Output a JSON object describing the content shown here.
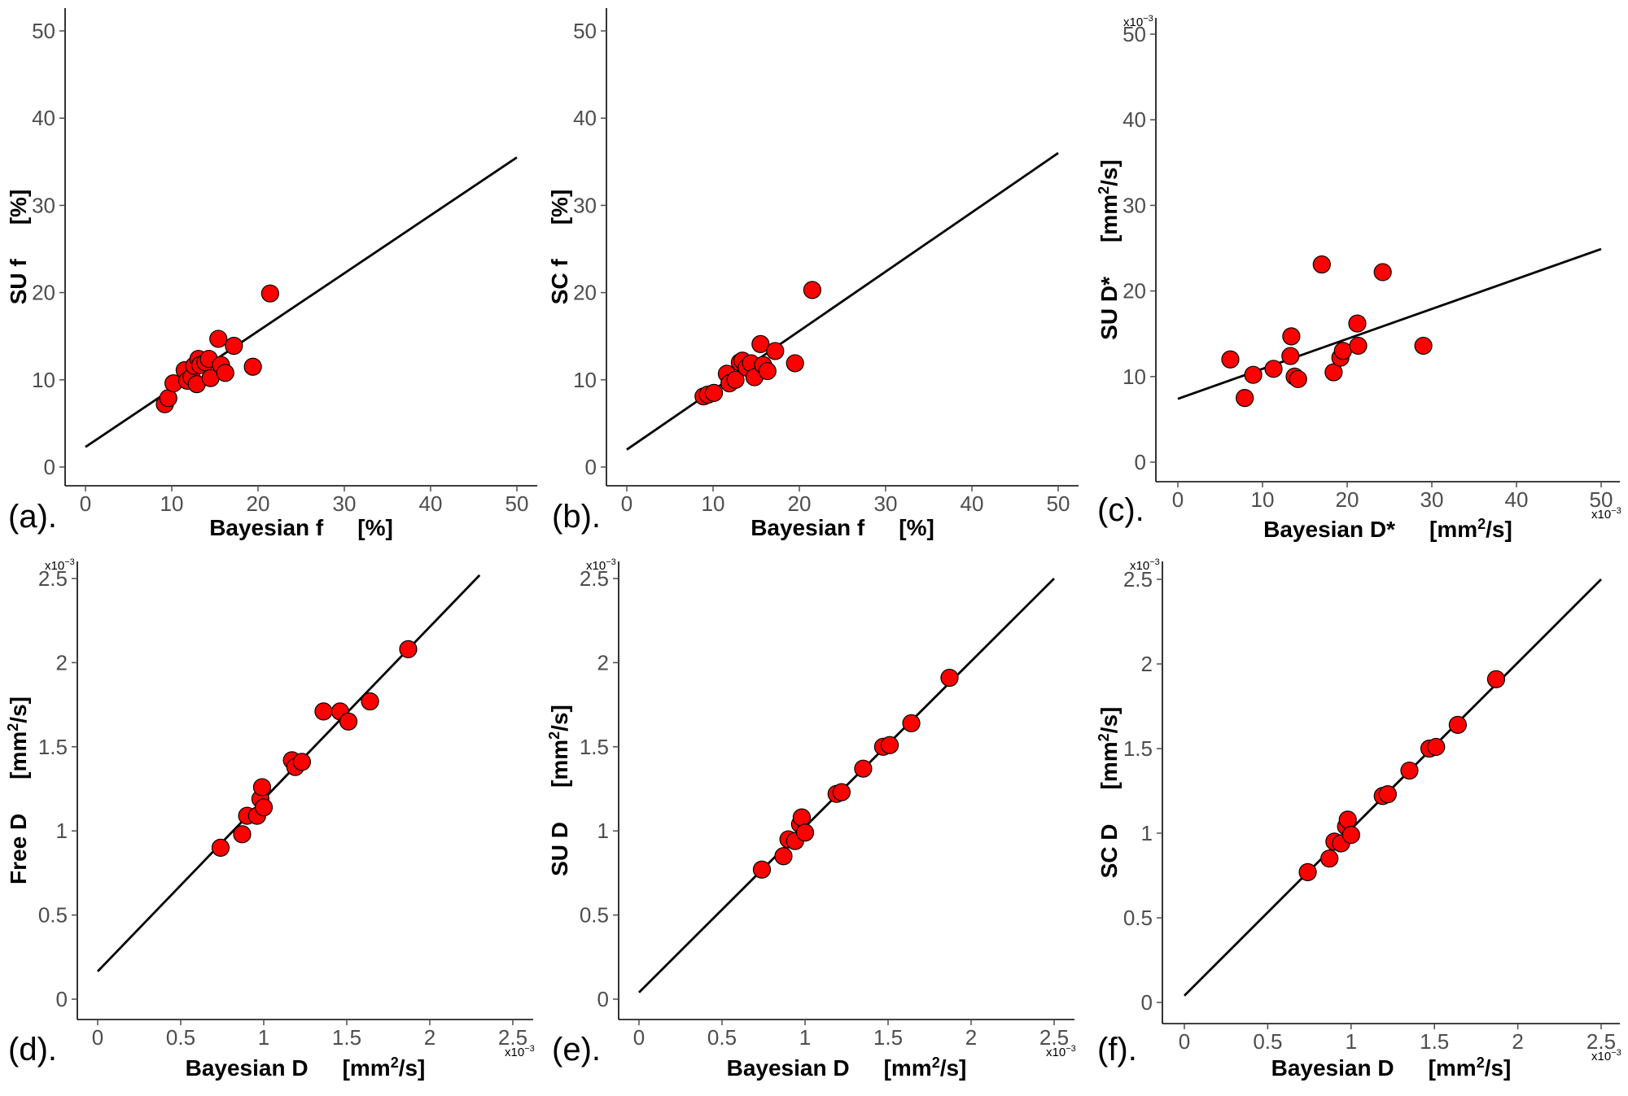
{
  "chart_data": [
    {
      "type": "scatter",
      "panel_label": "(a).",
      "xlabel": "Bayesian f",
      "ylabel": "SU f",
      "x_unit": "[%]",
      "y_unit": "[%]",
      "xlim": [
        0,
        50
      ],
      "ylim": [
        0,
        50
      ],
      "xticks": [
        0,
        10,
        20,
        30,
        40,
        50
      ],
      "yticks": [
        0,
        10,
        20,
        30,
        40,
        50
      ],
      "xtick_labels": [
        "0",
        "10",
        "20",
        "30",
        "40",
        "50"
      ],
      "ytick_labels": [
        "0",
        "10",
        "20",
        "30",
        "40",
        "50"
      ],
      "x_multiplier": "",
      "y_multiplier": "",
      "fit_line": {
        "x": [
          0,
          50
        ],
        "y": [
          2.3,
          35.5
        ]
      },
      "points": [
        [
          9.2,
          7.2
        ],
        [
          9.6,
          7.9
        ],
        [
          10.2,
          9.6
        ],
        [
          11.5,
          11.1
        ],
        [
          11.8,
          9.9
        ],
        [
          12.3,
          10.3
        ],
        [
          12.6,
          11.6
        ],
        [
          12.9,
          9.5
        ],
        [
          13.1,
          12.4
        ],
        [
          13.3,
          11.7
        ],
        [
          13.9,
          12.0
        ],
        [
          14.3,
          12.4
        ],
        [
          14.5,
          10.2
        ],
        [
          15.4,
          14.7
        ],
        [
          15.7,
          11.7
        ],
        [
          16.2,
          10.8
        ],
        [
          17.2,
          13.9
        ],
        [
          19.4,
          11.5
        ],
        [
          21.4,
          19.9
        ]
      ]
    },
    {
      "type": "scatter",
      "panel_label": "(b).",
      "xlabel": "Bayesian f",
      "ylabel": "SC f",
      "x_unit": "[%]",
      "y_unit": "[%]",
      "xlim": [
        0,
        50
      ],
      "ylim": [
        0,
        50
      ],
      "xticks": [
        0,
        10,
        20,
        30,
        40,
        50
      ],
      "yticks": [
        0,
        10,
        20,
        30,
        40,
        50
      ],
      "xtick_labels": [
        "0",
        "10",
        "20",
        "30",
        "40",
        "50"
      ],
      "ytick_labels": [
        "0",
        "10",
        "20",
        "30",
        "40",
        "50"
      ],
      "x_multiplier": "",
      "y_multiplier": "",
      "fit_line": {
        "x": [
          0,
          50
        ],
        "y": [
          2.0,
          36.0
        ]
      },
      "points": [
        [
          8.9,
          8.1
        ],
        [
          9.4,
          8.3
        ],
        [
          10.1,
          8.5
        ],
        [
          11.6,
          10.7
        ],
        [
          11.9,
          9.6
        ],
        [
          12.6,
          10.0
        ],
        [
          13.1,
          12.0
        ],
        [
          13.4,
          12.2
        ],
        [
          13.9,
          11.4
        ],
        [
          14.4,
          11.9
        ],
        [
          14.8,
          10.3
        ],
        [
          15.5,
          14.1
        ],
        [
          15.8,
          11.7
        ],
        [
          16.3,
          11.0
        ],
        [
          17.2,
          13.3
        ],
        [
          19.5,
          11.9
        ],
        [
          21.5,
          20.3
        ]
      ]
    },
    {
      "type": "scatter",
      "panel_label": "(c).",
      "xlabel": "Bayesian D*",
      "ylabel": "SU D*",
      "x_unit": "[mm2/s]",
      "y_unit": "[mm2/s]",
      "xlim": [
        0,
        50
      ],
      "ylim": [
        0,
        50
      ],
      "xticks": [
        0,
        10,
        20,
        30,
        40,
        50
      ],
      "yticks": [
        0,
        10,
        20,
        30,
        40,
        50
      ],
      "xtick_labels": [
        "0",
        "10",
        "20",
        "30",
        "40",
        "50"
      ],
      "ytick_labels": [
        "0",
        "10",
        "20",
        "30",
        "40",
        "50"
      ],
      "x_multiplier": "x10-3",
      "y_multiplier": "x10-3",
      "fit_line": {
        "x": [
          0,
          50
        ],
        "y": [
          7.4,
          24.9
        ]
      },
      "points": [
        [
          6.2,
          12.0
        ],
        [
          7.9,
          7.5
        ],
        [
          8.9,
          10.2
        ],
        [
          11.3,
          10.9
        ],
        [
          13.3,
          12.4
        ],
        [
          13.4,
          14.7
        ],
        [
          13.8,
          10.0
        ],
        [
          14.2,
          9.7
        ],
        [
          17.0,
          23.1
        ],
        [
          18.4,
          10.5
        ],
        [
          19.2,
          12.2
        ],
        [
          19.5,
          13.0
        ],
        [
          21.2,
          16.2
        ],
        [
          21.3,
          13.6
        ],
        [
          24.2,
          22.2
        ],
        [
          29.0,
          13.6
        ]
      ]
    },
    {
      "type": "scatter",
      "panel_label": "(d).",
      "xlabel": "Bayesian D",
      "ylabel": "Free D",
      "x_unit": "[mm2/s]",
      "y_unit": "[mm2/s]",
      "xlim": [
        0,
        2.5
      ],
      "ylim": [
        0,
        2.5
      ],
      "xticks": [
        0,
        0.5,
        1,
        1.5,
        2,
        2.5
      ],
      "yticks": [
        0,
        0.5,
        1,
        1.5,
        2,
        2.5
      ],
      "xtick_labels": [
        "0",
        "0.5",
        "1",
        "1.5",
        "2",
        "2.5"
      ],
      "ytick_labels": [
        "0",
        "0.5",
        "1",
        "1.5",
        "2",
        "2.5"
      ],
      "x_multiplier": "x10-3",
      "y_multiplier": "x10-3",
      "fit_line": {
        "x": [
          0,
          2.3
        ],
        "y": [
          0.165,
          2.52
        ]
      },
      "points": [
        [
          0.74,
          0.9
        ],
        [
          0.87,
          0.98
        ],
        [
          0.9,
          1.09
        ],
        [
          0.96,
          1.09
        ],
        [
          0.98,
          1.19
        ],
        [
          0.99,
          1.26
        ],
        [
          1.0,
          1.14
        ],
        [
          1.17,
          1.42
        ],
        [
          1.19,
          1.38
        ],
        [
          1.23,
          1.41
        ],
        [
          1.36,
          1.71
        ],
        [
          1.46,
          1.71
        ],
        [
          1.51,
          1.65
        ],
        [
          1.64,
          1.77
        ],
        [
          1.87,
          2.08
        ]
      ]
    },
    {
      "type": "scatter",
      "panel_label": "(e).",
      "xlabel": "Bayesian D",
      "ylabel": "SU D",
      "x_unit": "[mm2/s]",
      "y_unit": "[mm2/s]",
      "xlim": [
        0,
        2.5
      ],
      "ylim": [
        0,
        2.5
      ],
      "xticks": [
        0,
        0.5,
        1,
        1.5,
        2,
        2.5
      ],
      "yticks": [
        0,
        0.5,
        1,
        1.5,
        2,
        2.5
      ],
      "xtick_labels": [
        "0",
        "0.5",
        "1",
        "1.5",
        "2",
        "2.5"
      ],
      "ytick_labels": [
        "0",
        "0.5",
        "1",
        "1.5",
        "2",
        "2.5"
      ],
      "x_multiplier": "x10-3",
      "y_multiplier": "x10-3",
      "fit_line": {
        "x": [
          0,
          2.5
        ],
        "y": [
          0.04,
          2.5
        ]
      },
      "points": [
        [
          0.74,
          0.77
        ],
        [
          0.87,
          0.85
        ],
        [
          0.9,
          0.95
        ],
        [
          0.94,
          0.94
        ],
        [
          0.97,
          1.04
        ],
        [
          0.98,
          1.08
        ],
        [
          1.0,
          0.99
        ],
        [
          1.19,
          1.22
        ],
        [
          1.22,
          1.23
        ],
        [
          1.35,
          1.37
        ],
        [
          1.47,
          1.5
        ],
        [
          1.51,
          1.51
        ],
        [
          1.64,
          1.64
        ],
        [
          1.87,
          1.91
        ]
      ]
    },
    {
      "type": "scatter",
      "panel_label": "(f).",
      "xlabel": "Bayesian D",
      "ylabel": "SC D",
      "x_unit": "[mm2/s]",
      "y_unit": "[mm2/s]",
      "xlim": [
        0,
        2.5
      ],
      "ylim": [
        0,
        2.5
      ],
      "xticks": [
        0,
        0.5,
        1,
        1.5,
        2,
        2.5
      ],
      "yticks": [
        0,
        0.5,
        1,
        1.5,
        2,
        2.5
      ],
      "xtick_labels": [
        "0",
        "0.5",
        "1",
        "1.5",
        "2",
        "2.5"
      ],
      "ytick_labels": [
        "0",
        "0.5",
        "1",
        "1.5",
        "2",
        "2.5"
      ],
      "x_multiplier": "x10-3",
      "y_multiplier": "x10-3",
      "fit_line": {
        "x": [
          0,
          2.5
        ],
        "y": [
          0.04,
          2.5
        ]
      },
      "points": [
        [
          0.74,
          0.77
        ],
        [
          0.87,
          0.85
        ],
        [
          0.9,
          0.95
        ],
        [
          0.94,
          0.94
        ],
        [
          0.97,
          1.04
        ],
        [
          0.98,
          1.08
        ],
        [
          1.0,
          0.99
        ],
        [
          1.19,
          1.22
        ],
        [
          1.22,
          1.23
        ],
        [
          1.35,
          1.37
        ],
        [
          1.47,
          1.5
        ],
        [
          1.51,
          1.51
        ],
        [
          1.64,
          1.64
        ],
        [
          1.87,
          1.91
        ]
      ]
    }
  ],
  "style": {
    "point_color": "#ff0000",
    "point_edge_color": "#000000",
    "line_color": "#000000",
    "tick_color": "#4d4d4d"
  }
}
